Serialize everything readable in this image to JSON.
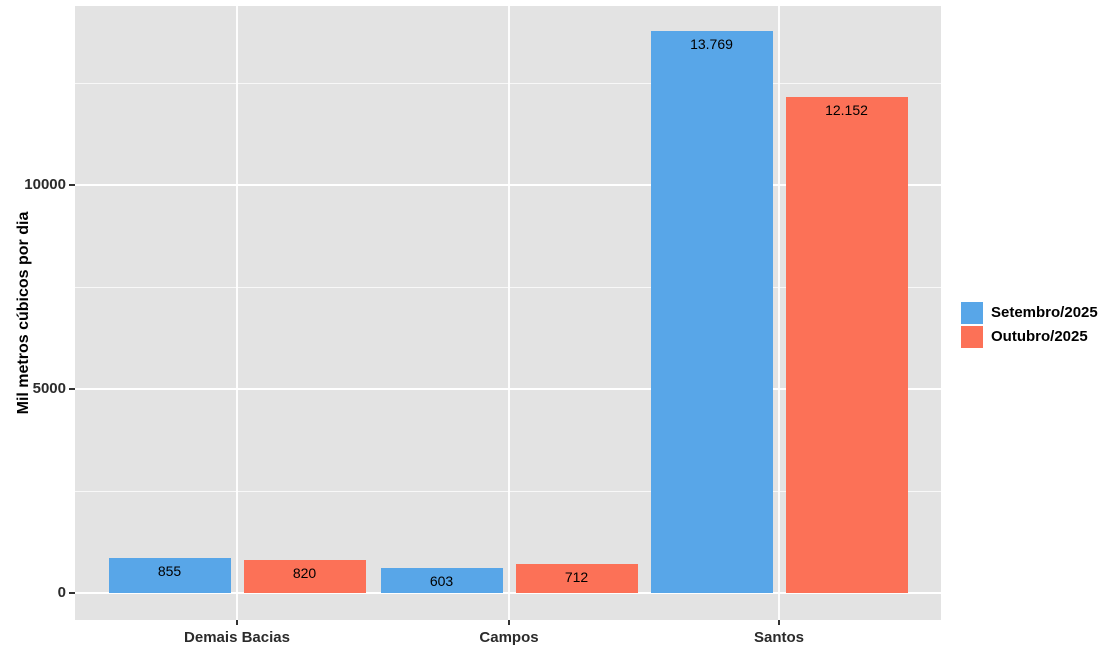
{
  "chart_data": {
    "type": "bar",
    "title": "",
    "xlabel": "",
    "ylabel": "Mil metros cúbicos por dia",
    "categories": [
      "Demais Bacias",
      "Campos",
      "Santos"
    ],
    "series": [
      {
        "name": "Setembro/2025",
        "color": "#58A6E8",
        "values": [
          855,
          603,
          13769
        ],
        "value_labels": [
          "855",
          "603",
          "13.769"
        ]
      },
      {
        "name": "Outubro/2025",
        "color": "#FC7157",
        "values": [
          820,
          712,
          12152
        ],
        "value_labels": [
          "820",
          "712",
          "12.152"
        ]
      }
    ],
    "y_axis": {
      "ticks": [
        0,
        5000,
        10000
      ],
      "tick_labels": [
        "0",
        "5000",
        "10000"
      ],
      "minor_ticks": [
        2500,
        7500,
        12500
      ],
      "range": [
        -688,
        14457
      ]
    },
    "x_axis": {
      "tick_labels": [
        "Demais Bacias",
        "Campos",
        "Santos"
      ]
    },
    "legend": {
      "position": "right",
      "entries": [
        "Setembro/2025",
        "Outubro/2025"
      ]
    },
    "style": {
      "panel_background": "#E3E3E3",
      "grid_color": "#FFFFFF",
      "bar_label_color": "#000000"
    }
  }
}
